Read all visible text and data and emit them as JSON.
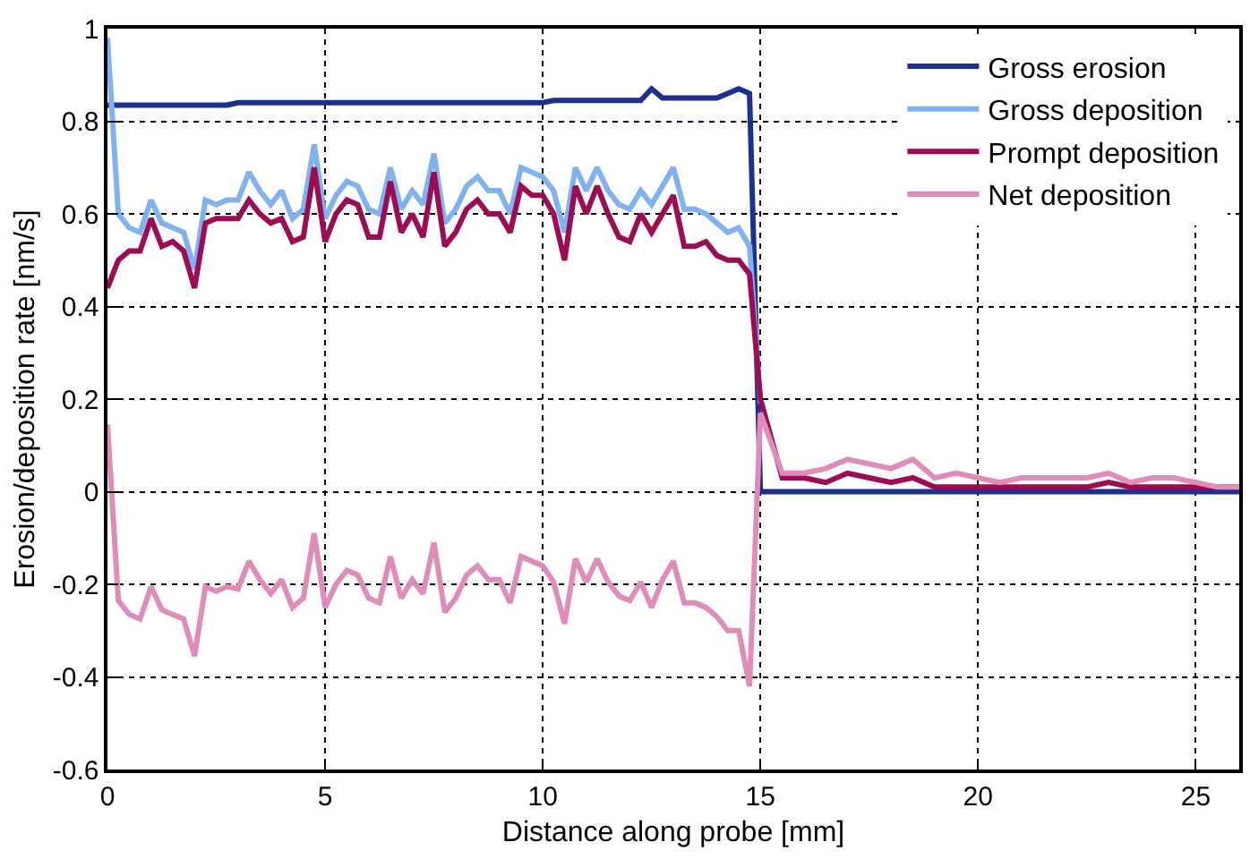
{
  "chart_data": {
    "type": "line",
    "xlabel": "Distance along probe [mm]",
    "ylabel": "Erosion/deposition rate [nm/s]",
    "x": [
      0,
      0.25,
      0.5,
      0.75,
      1,
      1.25,
      1.5,
      1.75,
      2,
      2.25,
      2.5,
      2.75,
      3,
      3.25,
      3.5,
      3.75,
      4,
      4.25,
      4.5,
      4.75,
      5,
      5.25,
      5.5,
      5.75,
      6,
      6.25,
      6.5,
      6.75,
      7,
      7.25,
      7.5,
      7.75,
      8,
      8.25,
      8.5,
      8.75,
      9,
      9.25,
      9.5,
      9.75,
      10,
      10.25,
      10.5,
      10.75,
      11,
      11.25,
      11.5,
      11.75,
      12,
      12.25,
      12.5,
      12.75,
      13,
      13.25,
      13.5,
      13.75,
      14,
      14.25,
      14.5,
      14.75,
      15,
      15.5,
      16,
      16.5,
      17,
      17.5,
      18,
      18.5,
      19,
      19.5,
      20,
      20.5,
      21,
      21.5,
      22,
      22.5,
      23,
      23.5,
      24,
      24.5,
      25,
      25.5,
      26
    ],
    "series": [
      {
        "name": "Gross erosion",
        "color": "#1f2f8f",
        "values": [
          0.835,
          0.835,
          0.835,
          0.835,
          0.835,
          0.835,
          0.835,
          0.835,
          0.835,
          0.835,
          0.835,
          0.835,
          0.84,
          0.84,
          0.84,
          0.84,
          0.84,
          0.84,
          0.84,
          0.84,
          0.84,
          0.84,
          0.84,
          0.84,
          0.84,
          0.84,
          0.84,
          0.84,
          0.84,
          0.84,
          0.84,
          0.84,
          0.84,
          0.84,
          0.84,
          0.84,
          0.84,
          0.84,
          0.84,
          0.84,
          0.84,
          0.845,
          0.845,
          0.845,
          0.845,
          0.845,
          0.845,
          0.845,
          0.845,
          0.845,
          0.87,
          0.85,
          0.85,
          0.85,
          0.85,
          0.85,
          0.85,
          0.86,
          0.87,
          0.86,
          0,
          0,
          0,
          0,
          0,
          0,
          0,
          0,
          0,
          0,
          0,
          0,
          0,
          0,
          0,
          0,
          0,
          0,
          0,
          0,
          0,
          0,
          0
        ]
      },
      {
        "name": "Gross deposition",
        "color": "#80b1f0",
        "values": [
          0.98,
          0.6,
          0.57,
          0.56,
          0.63,
          0.58,
          0.57,
          0.56,
          0.48,
          0.63,
          0.62,
          0.63,
          0.63,
          0.69,
          0.65,
          0.62,
          0.65,
          0.59,
          0.61,
          0.75,
          0.59,
          0.64,
          0.67,
          0.66,
          0.61,
          0.6,
          0.7,
          0.61,
          0.65,
          0.62,
          0.73,
          0.58,
          0.61,
          0.66,
          0.68,
          0.65,
          0.65,
          0.6,
          0.7,
          0.69,
          0.68,
          0.65,
          0.56,
          0.7,
          0.65,
          0.7,
          0.65,
          0.62,
          0.61,
          0.65,
          0.62,
          0.66,
          0.7,
          0.61,
          0.61,
          0.6,
          0.58,
          0.56,
          0.57,
          0.53,
          0.19,
          null,
          null,
          null,
          null,
          null,
          null,
          null,
          null,
          null,
          null,
          null,
          null,
          null,
          null,
          null,
          null,
          null,
          null,
          null,
          null,
          null,
          null
        ]
      },
      {
        "name": "Prompt deposition",
        "color": "#9b0c52",
        "values": [
          0.44,
          0.5,
          0.52,
          0.52,
          0.59,
          0.53,
          0.54,
          0.52,
          0.44,
          0.58,
          0.59,
          0.59,
          0.59,
          0.63,
          0.6,
          0.58,
          0.59,
          0.54,
          0.55,
          0.7,
          0.54,
          0.6,
          0.63,
          0.62,
          0.55,
          0.55,
          0.67,
          0.56,
          0.6,
          0.55,
          0.69,
          0.53,
          0.56,
          0.61,
          0.63,
          0.6,
          0.6,
          0.56,
          0.66,
          0.64,
          0.64,
          0.6,
          0.5,
          0.66,
          0.6,
          0.66,
          0.6,
          0.55,
          0.54,
          0.6,
          0.56,
          0.6,
          0.64,
          0.53,
          0.53,
          0.54,
          0.51,
          0.5,
          0.5,
          0.47,
          0.2,
          0.03,
          0.03,
          0.02,
          0.04,
          0.03,
          0.02,
          0.03,
          0.01,
          0.01,
          0.01,
          0.01,
          0.01,
          0.01,
          0.01,
          0.01,
          0.02,
          0.01,
          0.01,
          0.01,
          0.01,
          0.01,
          0.01
        ]
      },
      {
        "name": "Net deposition",
        "color": "#e08cbb",
        "values": [
          0.145,
          -0.235,
          -0.265,
          -0.275,
          -0.205,
          -0.255,
          -0.265,
          -0.275,
          -0.355,
          -0.205,
          -0.215,
          -0.205,
          -0.21,
          -0.15,
          -0.19,
          -0.22,
          -0.19,
          -0.25,
          -0.23,
          -0.09,
          -0.25,
          -0.2,
          -0.17,
          -0.18,
          -0.23,
          -0.24,
          -0.14,
          -0.23,
          -0.19,
          -0.22,
          -0.11,
          -0.26,
          -0.23,
          -0.18,
          -0.16,
          -0.19,
          -0.19,
          -0.24,
          -0.14,
          -0.15,
          -0.16,
          -0.195,
          -0.285,
          -0.145,
          -0.195,
          -0.145,
          -0.195,
          -0.225,
          -0.235,
          -0.195,
          -0.25,
          -0.19,
          -0.15,
          -0.24,
          -0.24,
          -0.25,
          -0.27,
          -0.3,
          -0.3,
          -0.42,
          0.17,
          0.04,
          0.04,
          0.05,
          0.07,
          0.06,
          0.05,
          0.07,
          0.03,
          0.04,
          0.03,
          0.02,
          0.03,
          0.03,
          0.03,
          0.03,
          0.04,
          0.02,
          0.03,
          0.03,
          0.02,
          0.01,
          0.01
        ]
      }
    ],
    "xlim": [
      0,
      26
    ],
    "xticks": [
      0,
      5,
      10,
      15,
      20,
      25
    ],
    "ylim": [
      -0.6,
      1
    ],
    "yticks": [
      -0.6,
      -0.4,
      -0.2,
      0,
      0.2,
      0.4,
      0.6,
      0.8,
      1
    ],
    "grid": true,
    "legend": "top right",
    "marker": "none",
    "line_style": "solid"
  }
}
